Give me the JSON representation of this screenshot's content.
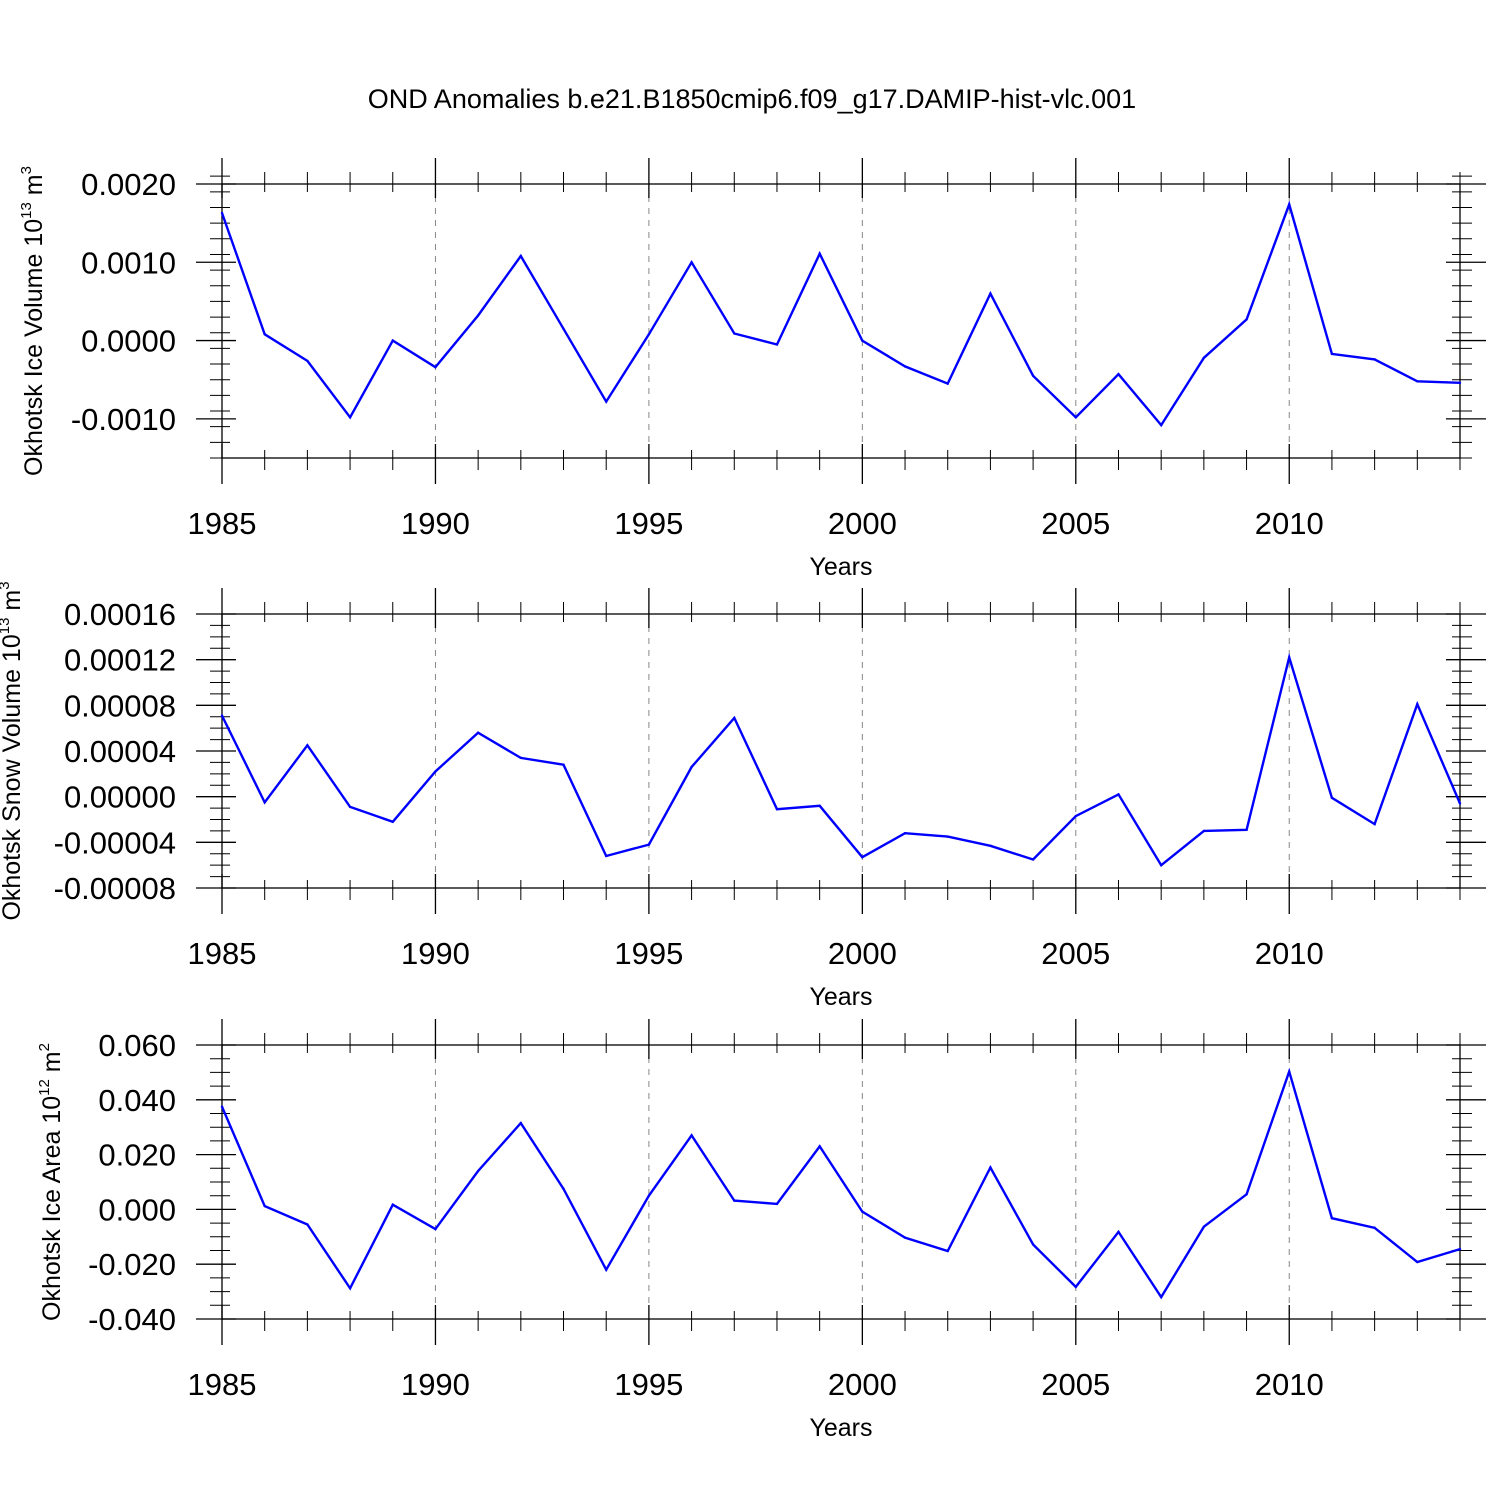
{
  "figure": {
    "title": "OND Anomalies b.e21.B1850cmip6.f09_g17.DAMIP-hist-vlc.001"
  },
  "chart_data": [
    {
      "type": "line",
      "ylabel": {
        "text": "Okhotsk Ice Volume 10",
        "exp": "13",
        "unit": "m",
        "unit_exp": "3"
      },
      "xlabel": "Years",
      "xlim": [
        1985,
        2014
      ],
      "ylim": [
        -0.0015,
        0.002
      ],
      "xticks": [
        1985,
        1990,
        1995,
        2000,
        2005,
        2010
      ],
      "xtick_labels": [
        "1985",
        "1990",
        "1995",
        "2000",
        "2005",
        "2010"
      ],
      "yticks": [
        -0.001,
        0.0,
        0.001,
        0.002
      ],
      "ytick_labels": [
        "-0.0010",
        "0.0000",
        "0.0010",
        "0.0020"
      ],
      "yminor_step": 0.0002,
      "grid": "vertical-dashed",
      "line_color": "#0000ff",
      "x": [
        1985,
        1986,
        1987,
        1988,
        1989,
        1990,
        1991,
        1992,
        1993,
        1994,
        1995,
        1996,
        1997,
        1998,
        1999,
        2000,
        2001,
        2002,
        2003,
        2004,
        2005,
        2006,
        2007,
        2008,
        2009,
        2010,
        2011,
        2012,
        2013,
        2014
      ],
      "values": [
        0.00163,
        8e-05,
        -0.00026,
        -0.00098,
        0.0,
        -0.00034,
        0.00032,
        0.00108,
        0.00015,
        -0.00078,
        8e-05,
        0.001,
        9e-05,
        -5e-05,
        0.00111,
        0.0,
        -0.00033,
        -0.00055,
        0.0006,
        -0.00045,
        -0.00098,
        -0.00043,
        -0.00108,
        -0.00022,
        0.00027,
        0.00174,
        -0.00017,
        -0.00024,
        -0.00052,
        -0.00054
      ]
    },
    {
      "type": "line",
      "ylabel": {
        "text": "Okhotsk Snow Volume 10",
        "exp": "13",
        "unit": "m",
        "unit_exp": "3"
      },
      "xlabel": "Years",
      "xlim": [
        1985,
        2014
      ],
      "ylim": [
        -8e-05,
        0.00016
      ],
      "xticks": [
        1985,
        1990,
        1995,
        2000,
        2005,
        2010
      ],
      "xtick_labels": [
        "1985",
        "1990",
        "1995",
        "2000",
        "2005",
        "2010"
      ],
      "yticks": [
        -8e-05,
        -4e-05,
        0.0,
        4e-05,
        8e-05,
        0.00012,
        0.00016
      ],
      "ytick_labels": [
        "-0.00008",
        "-0.00004",
        "0.00000",
        "0.00004",
        "0.00008",
        "0.00012",
        "0.00016"
      ],
      "yminor_step": 1e-05,
      "grid": "vertical-dashed",
      "line_color": "#0000ff",
      "x": [
        1985,
        1986,
        1987,
        1988,
        1989,
        1990,
        1991,
        1992,
        1993,
        1994,
        1995,
        1996,
        1997,
        1998,
        1999,
        2000,
        2001,
        2002,
        2003,
        2004,
        2005,
        2006,
        2007,
        2008,
        2009,
        2010,
        2011,
        2012,
        2013,
        2014
      ],
      "values": [
        7.1e-05,
        -5e-06,
        4.5e-05,
        -9e-06,
        -2.2e-05,
        2.2e-05,
        5.6e-05,
        3.4e-05,
        2.8e-05,
        -5.2e-05,
        -4.2e-05,
        2.6e-05,
        6.9e-05,
        -1.1e-05,
        -8e-06,
        -5.3e-05,
        -3.2e-05,
        -3.5e-05,
        -4.3e-05,
        -5.5e-05,
        -1.7e-05,
        2e-06,
        -6e-05,
        -3e-05,
        -2.9e-05,
        0.000122,
        -1e-06,
        -2.4e-05,
        8.1e-05,
        -6e-06
      ]
    },
    {
      "type": "line",
      "ylabel": {
        "text": "Okhotsk Ice Area 10",
        "exp": "12",
        "unit": "m",
        "unit_exp": "2"
      },
      "xlabel": "Years",
      "xlim": [
        1985,
        2014
      ],
      "ylim": [
        -0.04,
        0.06
      ],
      "xticks": [
        1985,
        1990,
        1995,
        2000,
        2005,
        2010
      ],
      "xtick_labels": [
        "1985",
        "1990",
        "1995",
        "2000",
        "2005",
        "2010"
      ],
      "yticks": [
        -0.04,
        -0.02,
        0.0,
        0.02,
        0.04,
        0.06
      ],
      "ytick_labels": [
        "-0.040",
        "-0.020",
        "0.000",
        "0.020",
        "0.040",
        "0.060"
      ],
      "yminor_step": 0.005,
      "grid": "vertical-dashed",
      "line_color": "#0000ff",
      "x": [
        1985,
        1986,
        1987,
        1988,
        1989,
        1990,
        1991,
        1992,
        1993,
        1994,
        1995,
        1996,
        1997,
        1998,
        1999,
        2000,
        2001,
        2002,
        2003,
        2004,
        2005,
        2006,
        2007,
        2008,
        2009,
        2010,
        2011,
        2012,
        2013,
        2014
      ],
      "values": [
        0.0375,
        0.0012,
        -0.0055,
        -0.0288,
        0.0017,
        -0.0072,
        0.014,
        0.0315,
        0.0075,
        -0.022,
        0.005,
        0.027,
        0.0032,
        0.002,
        0.023,
        -0.0008,
        -0.0103,
        -0.0152,
        0.0153,
        -0.0128,
        -0.0283,
        -0.0082,
        -0.032,
        -0.0063,
        0.0055,
        0.0503,
        -0.0032,
        -0.0067,
        -0.0192,
        -0.0145
      ]
    }
  ]
}
